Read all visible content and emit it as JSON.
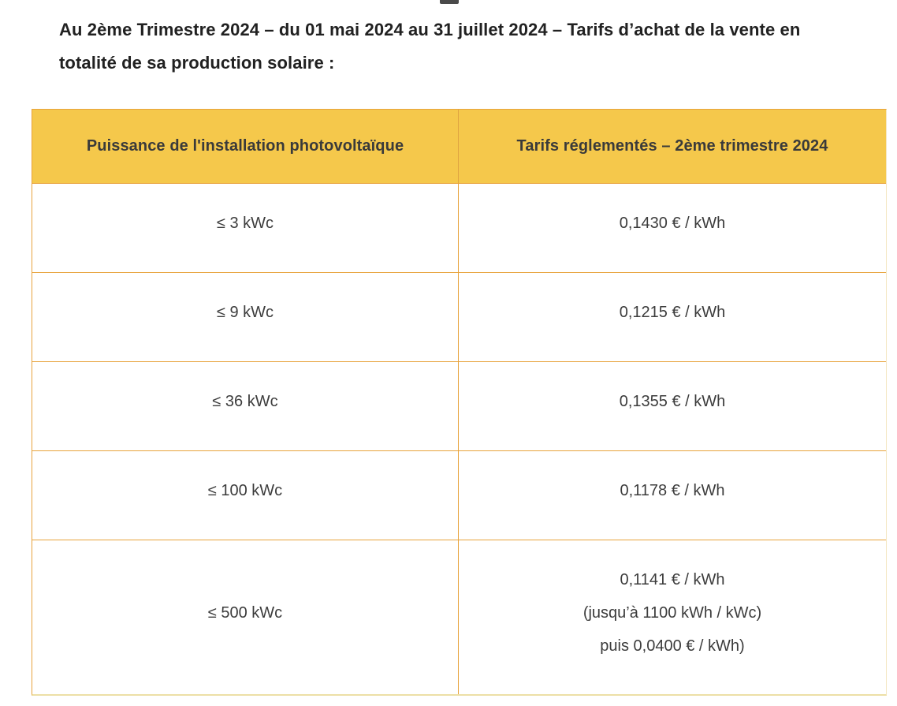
{
  "intro_text": "Au 2ème Trimestre 2024 – du 01 mai 2024 au 31 juillet 2024 – Tarifs d’achat de la vente en totalité de sa production solaire :",
  "table": {
    "headers": [
      "Puissance de l'installation photovoltaïque",
      "Tarifs réglementés – 2ème trimestre 2024"
    ],
    "rows": [
      {
        "power": "≤ 3 kWc",
        "tariff_lines": [
          "0,1430 € / kWh"
        ]
      },
      {
        "power": "≤ 9 kWc",
        "tariff_lines": [
          "0,1215 € / kWh"
        ]
      },
      {
        "power": "≤ 36 kWc",
        "tariff_lines": [
          "0,1355 € / kWh"
        ]
      },
      {
        "power": "≤ 100 kWc",
        "tariff_lines": [
          "0,1178 € / kWh"
        ]
      },
      {
        "power": "≤ 500 kWc",
        "tariff_lines": [
          "0,1141 € / kWh",
          "(jusqu’à 1100 kWh / kWc)",
          "puis 0,0400 € / kWh)"
        ]
      }
    ]
  },
  "colors": {
    "header_bg": "#F5C84B",
    "border_orange": "#E8A33C",
    "border_light": "#F4E7C2",
    "heading_text": "#212121",
    "cell_text": "#3C3C3C"
  }
}
